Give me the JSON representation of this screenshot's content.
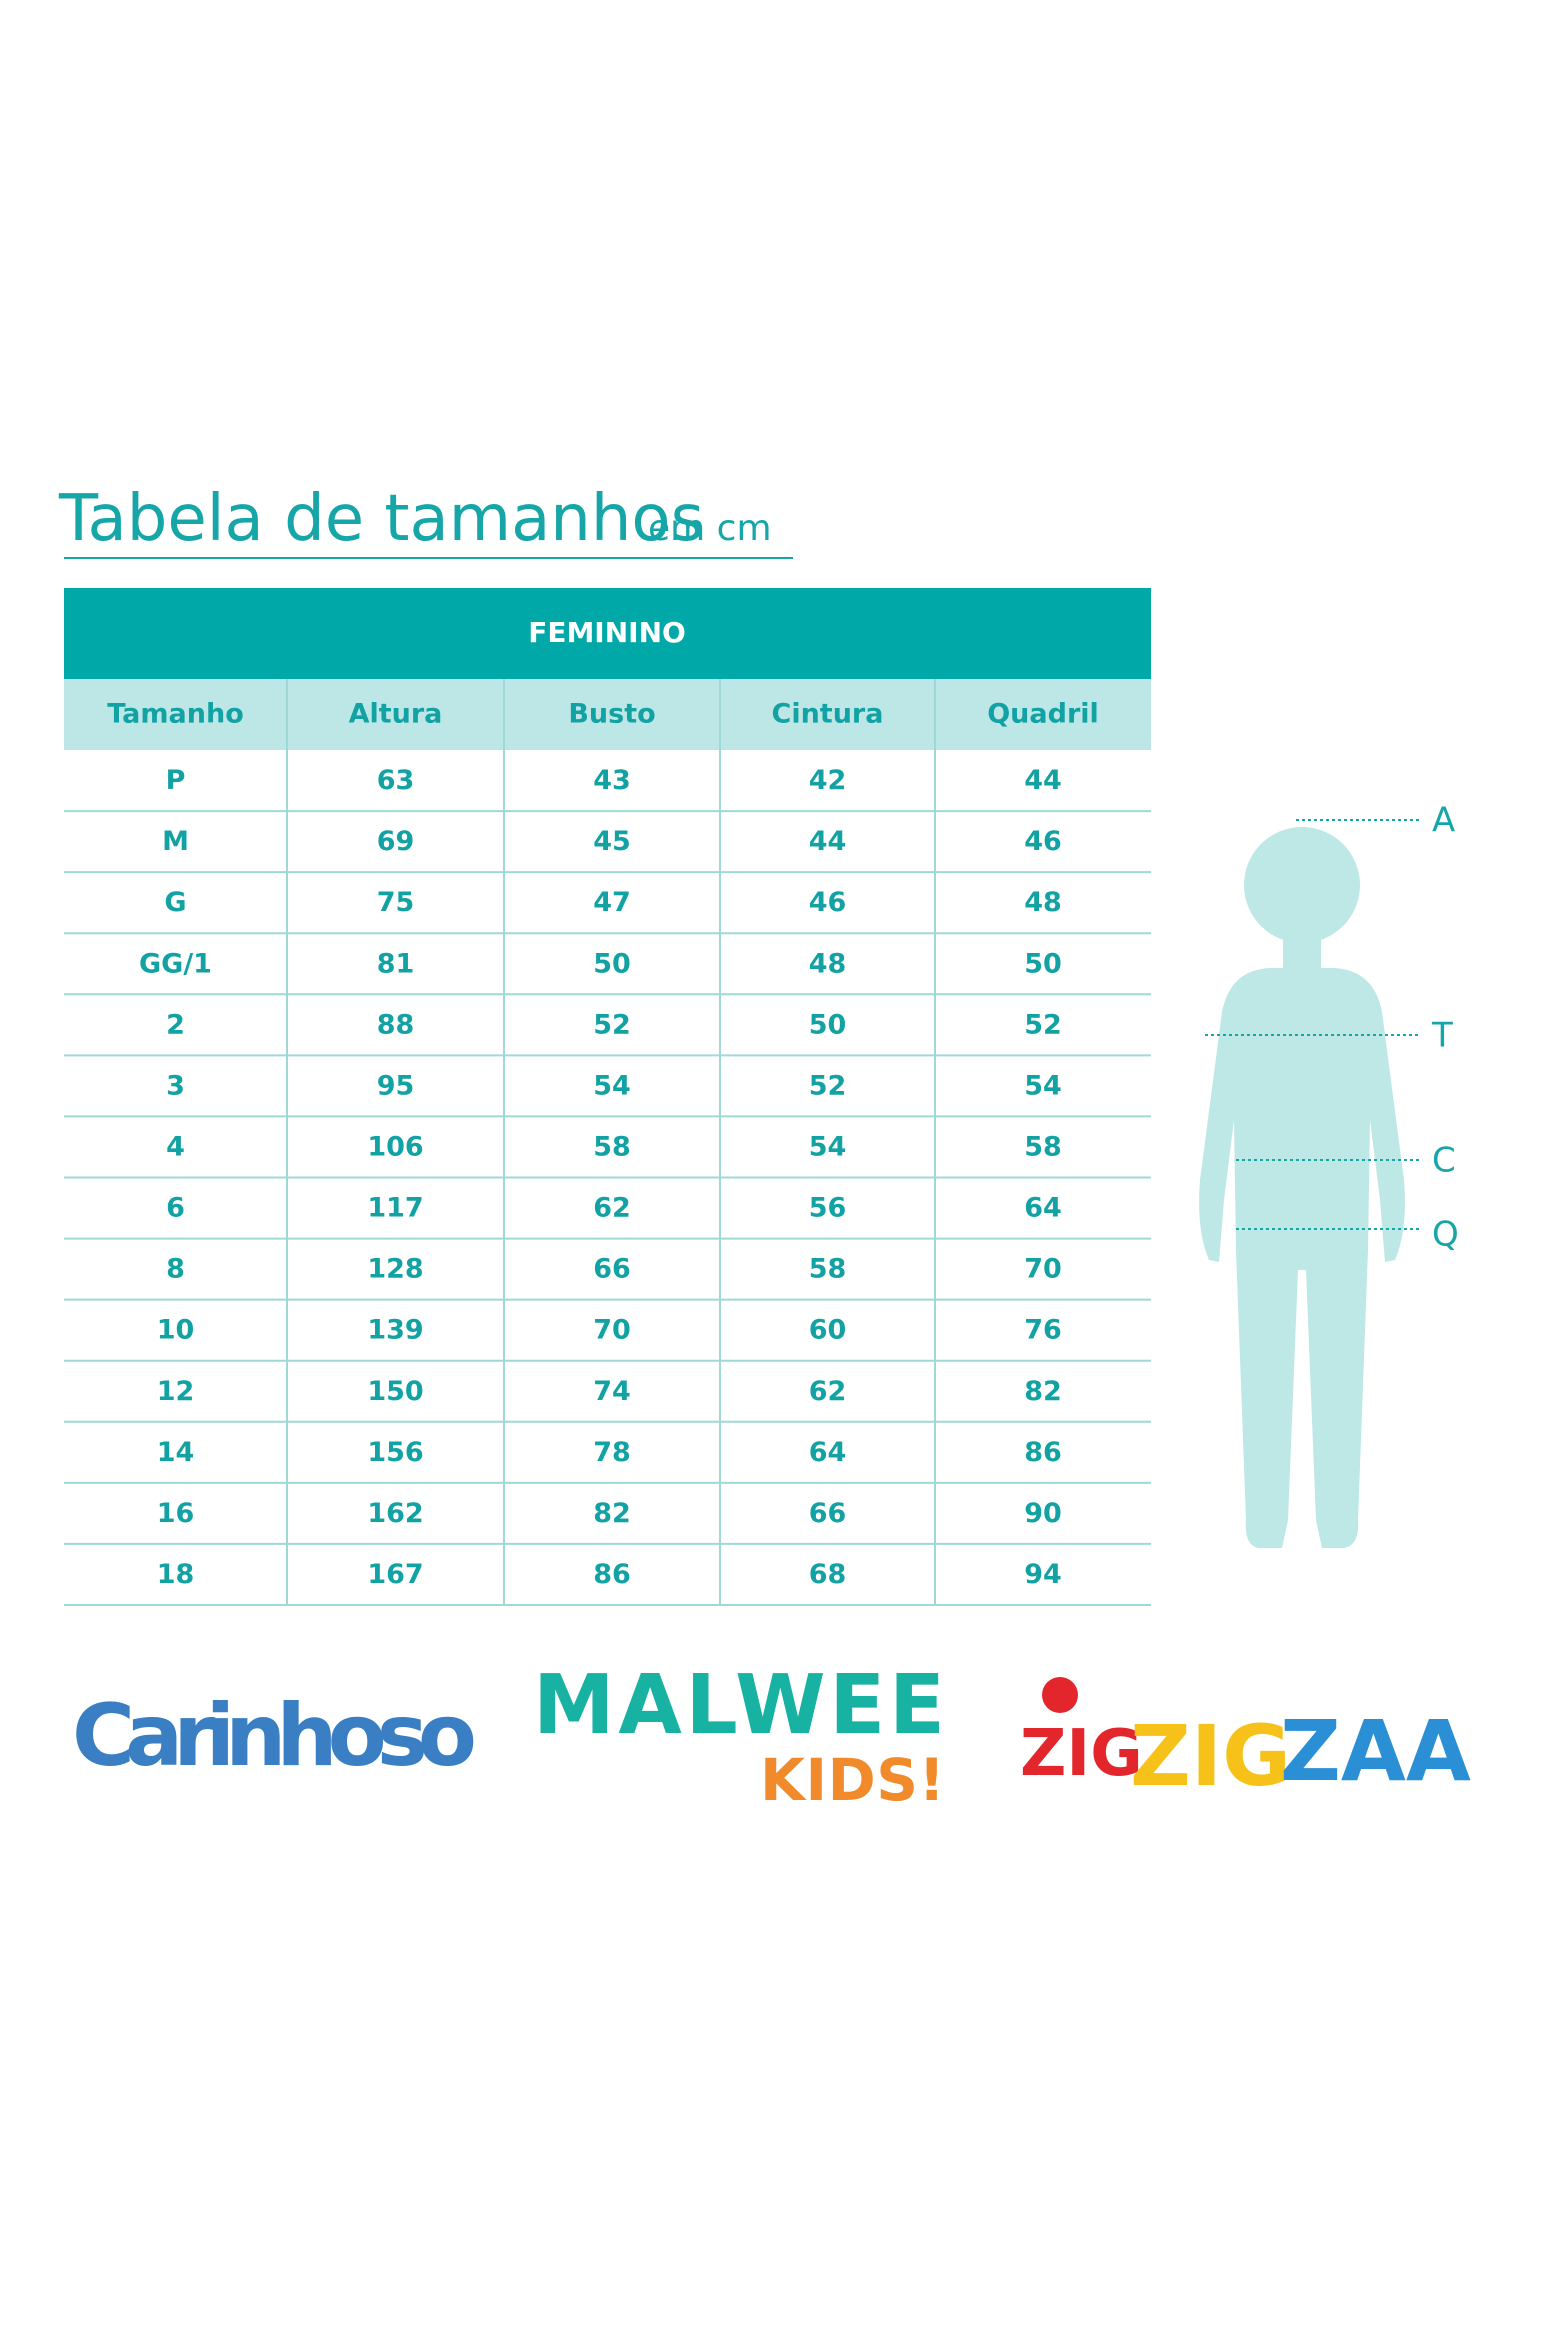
{
  "header": {
    "title": "Tabela de tamanhos",
    "unit": "em cm"
  },
  "table": {
    "group": "FEMININO",
    "columns": [
      "Tamanho",
      "Altura",
      "Busto",
      "Cintura",
      "Quadril"
    ],
    "rows": [
      [
        "P",
        63,
        43,
        42,
        44
      ],
      [
        "M",
        69,
        45,
        44,
        46
      ],
      [
        "G",
        75,
        47,
        46,
        48
      ],
      [
        "GG/1",
        81,
        50,
        48,
        50
      ],
      [
        "2",
        88,
        52,
        50,
        52
      ],
      [
        "3",
        95,
        54,
        52,
        54
      ],
      [
        "4",
        106,
        58,
        54,
        58
      ],
      [
        "6",
        117,
        62,
        56,
        64
      ],
      [
        "8",
        128,
        66,
        58,
        70
      ],
      [
        "10",
        139,
        70,
        60,
        76
      ],
      [
        "12",
        150,
        74,
        62,
        82
      ],
      [
        "14",
        156,
        78,
        64,
        86
      ],
      [
        "16",
        162,
        82,
        66,
        90
      ],
      [
        "18",
        167,
        86,
        68,
        94
      ]
    ]
  },
  "figure": {
    "labels": [
      "A",
      "T",
      "C",
      "Q"
    ]
  },
  "logos": {
    "carinhoso": "Carinhoso",
    "malwee": "MALWEE",
    "kids": "KIDS!",
    "zig1": "ZIG",
    "zig2": "ZIG",
    "zaa": "ZAA"
  }
}
